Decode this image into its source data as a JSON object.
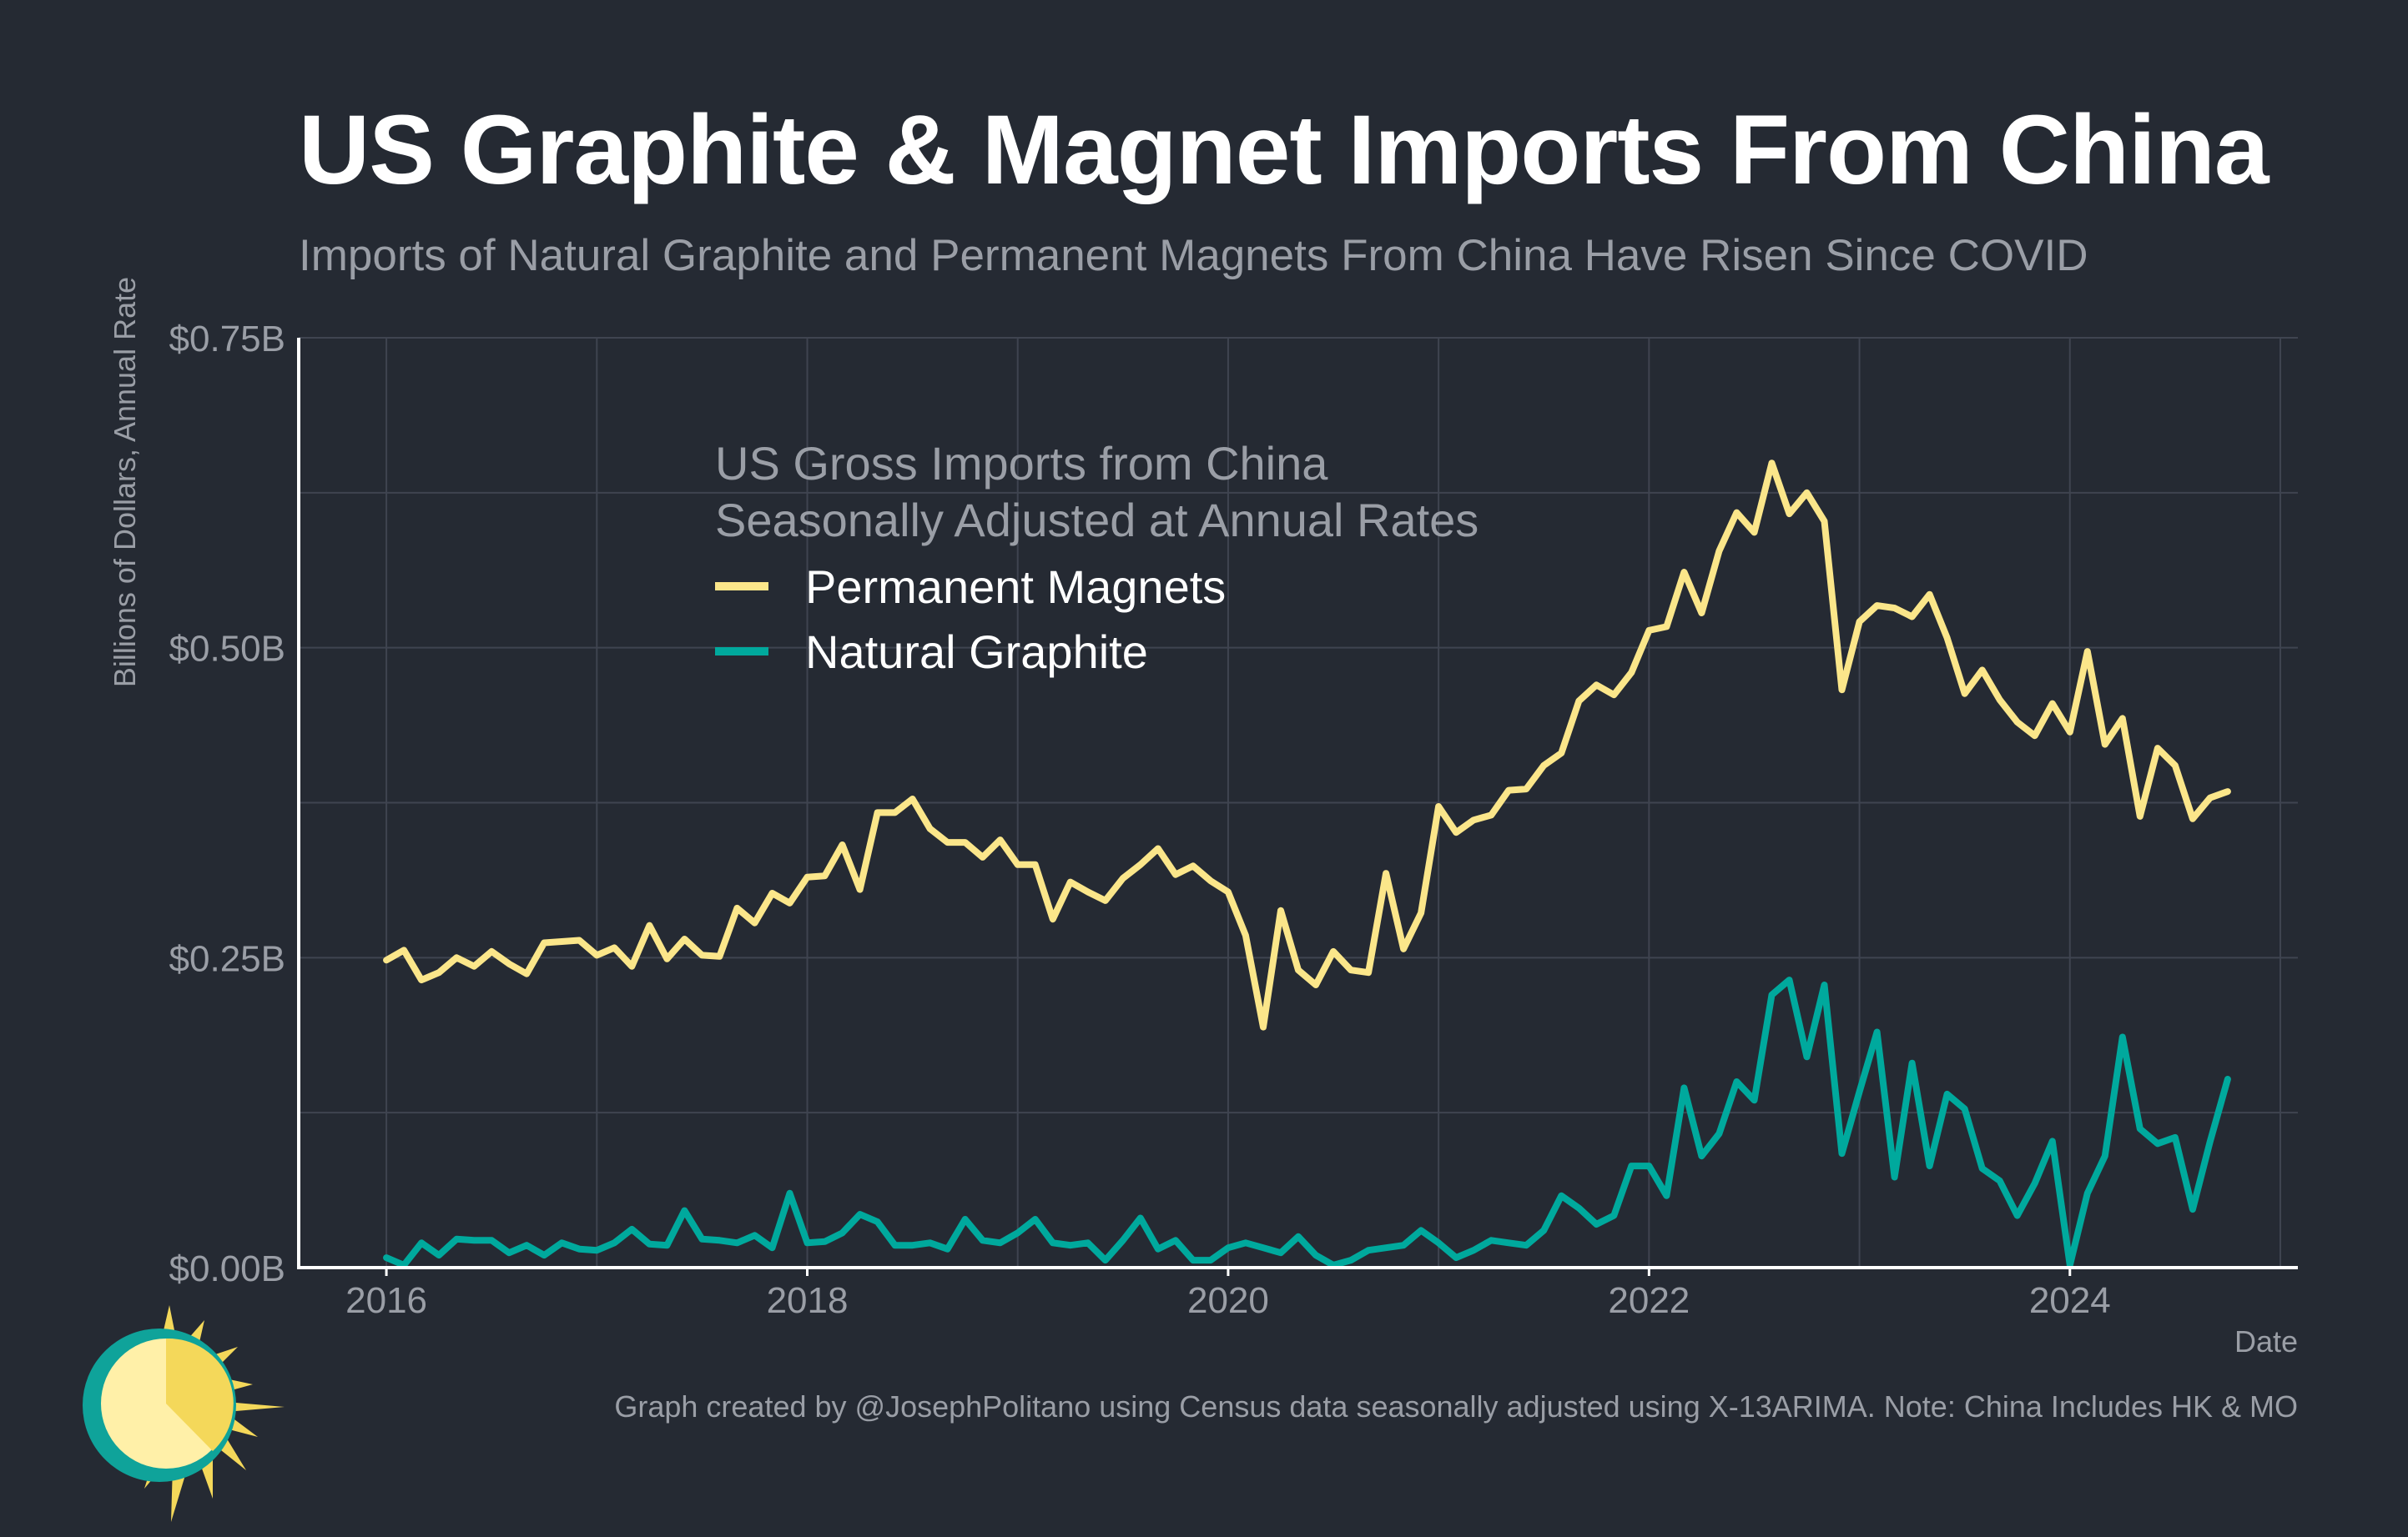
{
  "title": "US Graphite & Magnet Imports From China",
  "subtitle": "Imports of Natural Graphite and Permanent Magnets From China Have Risen Since COVID",
  "caption": "Graph created by @JosephPolitano using Census data seasonally adjusted using X-13ARIMA. Note: China Includes HK & MO",
  "colors": {
    "background": "#252a33",
    "magnets": "#fbe68a",
    "graphite": "#00a99d",
    "grid": "#3f4450",
    "text_muted": "#9a9ea6"
  },
  "logo": {
    "icon": "sun-icon"
  },
  "chart_data": {
    "type": "line",
    "title": "US Graphite & Magnet Imports From China",
    "xlabel": "Date",
    "ylabel": "Billions of Dollars, Annual Rate",
    "ylim": [
      0,
      0.75
    ],
    "xlim": [
      "2015-08",
      "2025-02"
    ],
    "y_ticks": [
      0,
      0.25,
      0.5,
      0.75
    ],
    "y_tick_labels": [
      "$0.00B",
      "$0.25B",
      "$0.50B",
      "$0.75B"
    ],
    "x_ticks": [
      "2016-01",
      "2018-01",
      "2020-01",
      "2022-01",
      "2024-01"
    ],
    "x_tick_labels": [
      "2016",
      "2018",
      "2020",
      "2022",
      "2024"
    ],
    "grid": true,
    "legend": {
      "title_line1": "US Gross Imports from China",
      "title_line2": "Seasonally Adjusted at Annual Rates",
      "placement": "upper-center"
    },
    "x": [
      "2016-01",
      "2016-02",
      "2016-03",
      "2016-04",
      "2016-05",
      "2016-06",
      "2016-07",
      "2016-08",
      "2016-09",
      "2016-10",
      "2016-11",
      "2016-12",
      "2017-01",
      "2017-02",
      "2017-03",
      "2017-04",
      "2017-05",
      "2017-06",
      "2017-07",
      "2017-08",
      "2017-09",
      "2017-10",
      "2017-11",
      "2017-12",
      "2018-01",
      "2018-02",
      "2018-03",
      "2018-04",
      "2018-05",
      "2018-06",
      "2018-07",
      "2018-08",
      "2018-09",
      "2018-10",
      "2018-11",
      "2018-12",
      "2019-01",
      "2019-02",
      "2019-03",
      "2019-04",
      "2019-05",
      "2019-06",
      "2019-07",
      "2019-08",
      "2019-09",
      "2019-10",
      "2019-11",
      "2019-12",
      "2020-01",
      "2020-02",
      "2020-03",
      "2020-04",
      "2020-05",
      "2020-06",
      "2020-07",
      "2020-08",
      "2020-09",
      "2020-10",
      "2020-11",
      "2020-12",
      "2021-01",
      "2021-02",
      "2021-03",
      "2021-04",
      "2021-05",
      "2021-06",
      "2021-07",
      "2021-08",
      "2021-09",
      "2021-10",
      "2021-11",
      "2021-12",
      "2022-01",
      "2022-02",
      "2022-03",
      "2022-04",
      "2022-05",
      "2022-06",
      "2022-07",
      "2022-08",
      "2022-09",
      "2022-10",
      "2022-11",
      "2022-12",
      "2023-01",
      "2023-02",
      "2023-03",
      "2023-04",
      "2023-05",
      "2023-06",
      "2023-07",
      "2023-08",
      "2023-09",
      "2023-10",
      "2023-11",
      "2023-12",
      "2024-01",
      "2024-02",
      "2024-03",
      "2024-04",
      "2024-05",
      "2024-06",
      "2024-07",
      "2024-08",
      "2024-09",
      "2024-10"
    ],
    "series": [
      {
        "name": "Permanent Magnets",
        "color": "#fbe68a",
        "values": [
          0.248,
          0.256,
          0.232,
          0.238,
          0.25,
          0.243,
          0.255,
          0.245,
          0.237,
          0.262,
          0.263,
          0.264,
          0.252,
          0.258,
          0.243,
          0.276,
          0.249,
          0.265,
          0.252,
          0.251,
          0.29,
          0.278,
          0.302,
          0.294,
          0.315,
          0.316,
          0.341,
          0.305,
          0.367,
          0.367,
          0.378,
          0.354,
          0.343,
          0.343,
          0.331,
          0.345,
          0.325,
          0.325,
          0.281,
          0.311,
          0.303,
          0.296,
          0.314,
          0.325,
          0.338,
          0.317,
          0.324,
          0.312,
          0.303,
          0.268,
          0.194,
          0.288,
          0.24,
          0.228,
          0.255,
          0.24,
          0.238,
          0.318,
          0.257,
          0.286,
          0.372,
          0.351,
          0.361,
          0.365,
          0.385,
          0.386,
          0.405,
          0.415,
          0.457,
          0.47,
          0.462,
          0.48,
          0.514,
          0.517,
          0.561,
          0.528,
          0.578,
          0.609,
          0.593,
          0.649,
          0.608,
          0.625,
          0.602,
          0.466,
          0.521,
          0.534,
          0.532,
          0.525,
          0.543,
          0.508,
          0.463,
          0.482,
          0.458,
          0.44,
          0.429,
          0.455,
          0.432,
          0.497,
          0.422,
          0.443,
          0.364,
          0.419,
          0.405,
          0.362,
          0.379,
          0.384
        ]
      },
      {
        "name": "Natural Graphite",
        "color": "#00a99d",
        "values": [
          0.008,
          0.002,
          0.02,
          0.01,
          0.023,
          0.022,
          0.022,
          0.012,
          0.018,
          0.01,
          0.02,
          0.015,
          0.014,
          0.02,
          0.031,
          0.019,
          0.018,
          0.046,
          0.023,
          0.022,
          0.02,
          0.026,
          0.016,
          0.06,
          0.02,
          0.021,
          0.028,
          0.043,
          0.037,
          0.018,
          0.018,
          0.02,
          0.015,
          0.039,
          0.022,
          0.02,
          0.028,
          0.039,
          0.02,
          0.018,
          0.02,
          0.006,
          0.022,
          0.04,
          0.015,
          0.022,
          0.006,
          0.006,
          0.016,
          0.02,
          0.016,
          0.012,
          0.025,
          0.01,
          0.002,
          0.006,
          0.014,
          0.016,
          0.018,
          0.03,
          0.02,
          0.008,
          0.014,
          0.022,
          0.02,
          0.018,
          0.03,
          0.058,
          0.048,
          0.035,
          0.042,
          0.082,
          0.082,
          0.058,
          0.145,
          0.09,
          0.108,
          0.15,
          0.135,
          0.22,
          0.232,
          0.17,
          0.228,
          0.092,
          0.142,
          0.19,
          0.073,
          0.165,
          0.082,
          0.14,
          0.128,
          0.08,
          0.07,
          0.042,
          0.068,
          0.102,
          0.002,
          0.06,
          0.09,
          0.186,
          0.112,
          0.1,
          0.105,
          0.047,
          0.102,
          0.152
        ]
      }
    ]
  }
}
